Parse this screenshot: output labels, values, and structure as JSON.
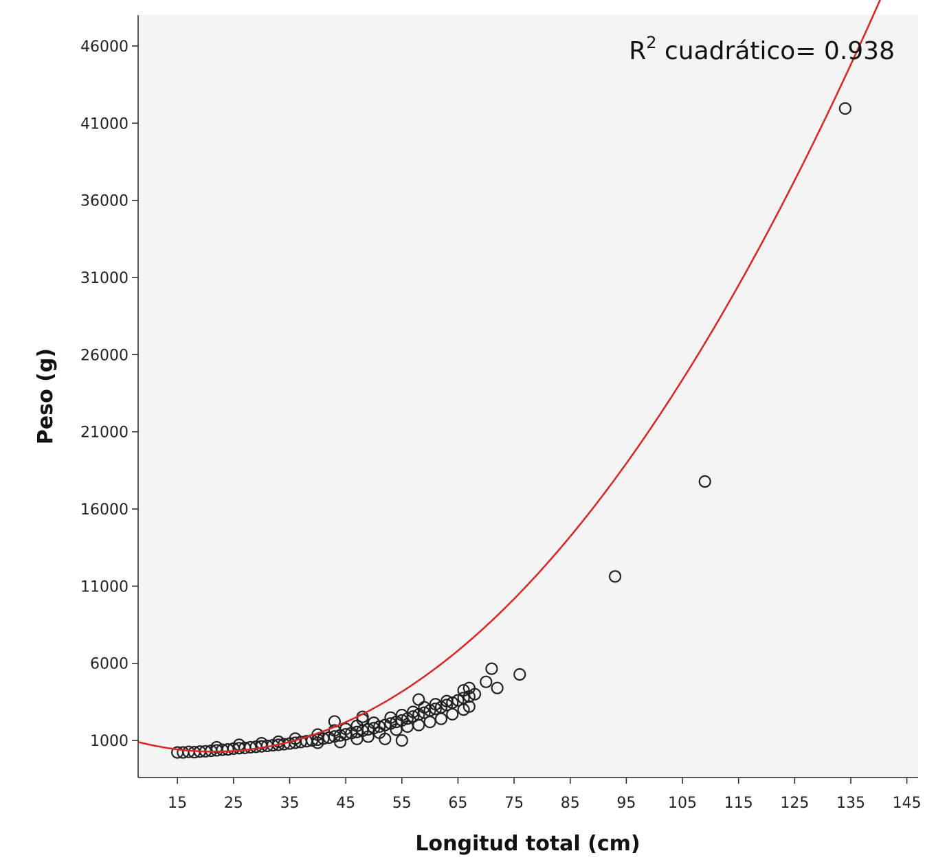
{
  "chart_data": {
    "type": "scatter",
    "title": "",
    "xlabel": "Longitud total (cm)",
    "ylabel": "Peso (g)",
    "xlim": [
      8,
      147
    ],
    "ylim": [
      -1400,
      48000
    ],
    "x_ticks": [
      15,
      25,
      35,
      45,
      55,
      65,
      75,
      85,
      95,
      105,
      115,
      125,
      135,
      145
    ],
    "y_ticks": [
      1000,
      6000,
      11000,
      16000,
      21000,
      26000,
      31000,
      36000,
      41000,
      46000
    ],
    "grid": false,
    "annotation": {
      "prefix": "R",
      "superscript": "2",
      "text": " cuadrático= 0.938"
    },
    "colors": {
      "background": "#f4f4f4",
      "fit_line": "#d42a2a",
      "marker": "#222222",
      "axis": "#222222"
    },
    "fit": {
      "model": "quadratic",
      "r2": 0.938,
      "coefficients": {
        "a": 3.4535,
        "b": -148.27,
        "c": 1869.4
      }
    },
    "series": [
      {
        "marker": "open-circle",
        "points": [
          [
            15,
            224
          ],
          [
            16,
            224
          ],
          [
            17,
            260
          ],
          [
            18,
            240
          ],
          [
            19,
            280
          ],
          [
            20,
            300
          ],
          [
            21,
            330
          ],
          [
            22,
            360
          ],
          [
            23,
            400
          ],
          [
            24,
            420
          ],
          [
            25,
            470
          ],
          [
            26,
            500
          ],
          [
            27,
            520
          ],
          [
            28,
            560
          ],
          [
            29,
            590
          ],
          [
            30,
            620
          ],
          [
            31,
            650
          ],
          [
            32,
            690
          ],
          [
            33,
            720
          ],
          [
            34,
            760
          ],
          [
            35,
            800
          ],
          [
            36,
            850
          ],
          [
            37,
            900
          ],
          [
            38,
            950
          ],
          [
            39,
            1000
          ],
          [
            40,
            1050
          ],
          [
            41,
            1120
          ],
          [
            42,
            1180
          ],
          [
            43,
            1260
          ],
          [
            44,
            1330
          ],
          [
            45,
            1400
          ],
          [
            46,
            1480
          ],
          [
            47,
            1550
          ],
          [
            48,
            1630
          ],
          [
            49,
            1720
          ],
          [
            50,
            1800
          ],
          [
            51,
            1900
          ],
          [
            52,
            2000
          ],
          [
            53,
            2100
          ],
          [
            54,
            2200
          ],
          [
            55,
            2300
          ],
          [
            56,
            2420
          ],
          [
            57,
            2550
          ],
          [
            58,
            2680
          ],
          [
            59,
            2800
          ],
          [
            60,
            2950
          ],
          [
            61,
            3050
          ],
          [
            62,
            3150
          ],
          [
            63,
            3300
          ],
          [
            64,
            3450
          ],
          [
            65,
            3600
          ],
          [
            66,
            3750
          ],
          [
            67,
            3850
          ],
          [
            68,
            4000
          ],
          [
            22,
            560
          ],
          [
            26,
            720
          ],
          [
            30,
            820
          ],
          [
            33,
            920
          ],
          [
            36,
            1120
          ],
          [
            40,
            1380
          ],
          [
            43,
            1650
          ],
          [
            45,
            1750
          ],
          [
            47,
            1950
          ],
          [
            48,
            2350
          ],
          [
            50,
            2150
          ],
          [
            53,
            2480
          ],
          [
            55,
            2650
          ],
          [
            57,
            2850
          ],
          [
            59,
            3150
          ],
          [
            61,
            3350
          ],
          [
            63,
            3550
          ],
          [
            66,
            4250
          ],
          [
            67,
            4400
          ],
          [
            40,
            850
          ],
          [
            44,
            900
          ],
          [
            47,
            1100
          ],
          [
            49,
            1250
          ],
          [
            51,
            1500
          ],
          [
            52,
            1100
          ],
          [
            54,
            1700
          ],
          [
            55,
            1000
          ],
          [
            56,
            1900
          ],
          [
            58,
            2000
          ],
          [
            60,
            2200
          ],
          [
            62,
            2400
          ],
          [
            64,
            2700
          ],
          [
            66,
            3000
          ],
          [
            67,
            3200
          ],
          [
            43,
            2230
          ],
          [
            48,
            2530
          ],
          [
            58,
            3650
          ],
          [
            70,
            4800
          ],
          [
            71,
            5650
          ],
          [
            72,
            4400
          ],
          [
            76,
            5280
          ],
          [
            93,
            11630
          ],
          [
            109,
            17780
          ],
          [
            134,
            41950
          ]
        ]
      }
    ]
  }
}
